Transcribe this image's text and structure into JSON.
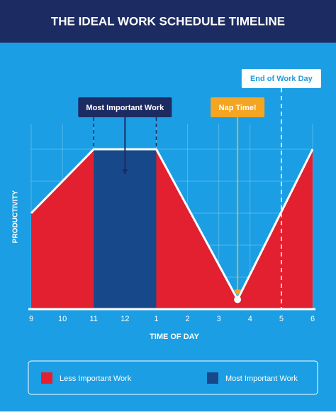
{
  "chart_data": {
    "type": "area",
    "title": "THE IDEAL WORK SCHEDULE TIMELINE",
    "x_label": "TIME OF DAY",
    "y_label": "PRODUCTIVITY",
    "x": [
      9,
      11,
      13,
      15.6,
      18
    ],
    "series": [
      {
        "name": "Less Important Work",
        "color": "#e3202f",
        "values": [
          3,
          5,
          5,
          0.3,
          5
        ]
      }
    ],
    "highlight": {
      "name": "Most Important Work",
      "color": "#17498a",
      "x": [
        11,
        13
      ]
    },
    "annotations": [
      {
        "text": "Nap Time!",
        "x": 15.6
      },
      {
        "text": "End of Work Day",
        "x": 17
      }
    ],
    "xlim": [
      9,
      18
    ],
    "ylim": [
      0,
      5.8
    ],
    "xticks": [
      9,
      10,
      11,
      12,
      {
        "value": 13,
        "label": "1"
      },
      {
        "value": 14,
        "label": "2"
      },
      {
        "value": 15,
        "label": "3"
      },
      {
        "value": 16,
        "label": "4"
      },
      {
        "value": 17,
        "label": "5"
      },
      {
        "value": 18,
        "label": "6"
      }
    ],
    "yticks": [
      1,
      2,
      3,
      4,
      5
    ],
    "grid": true
  }
}
